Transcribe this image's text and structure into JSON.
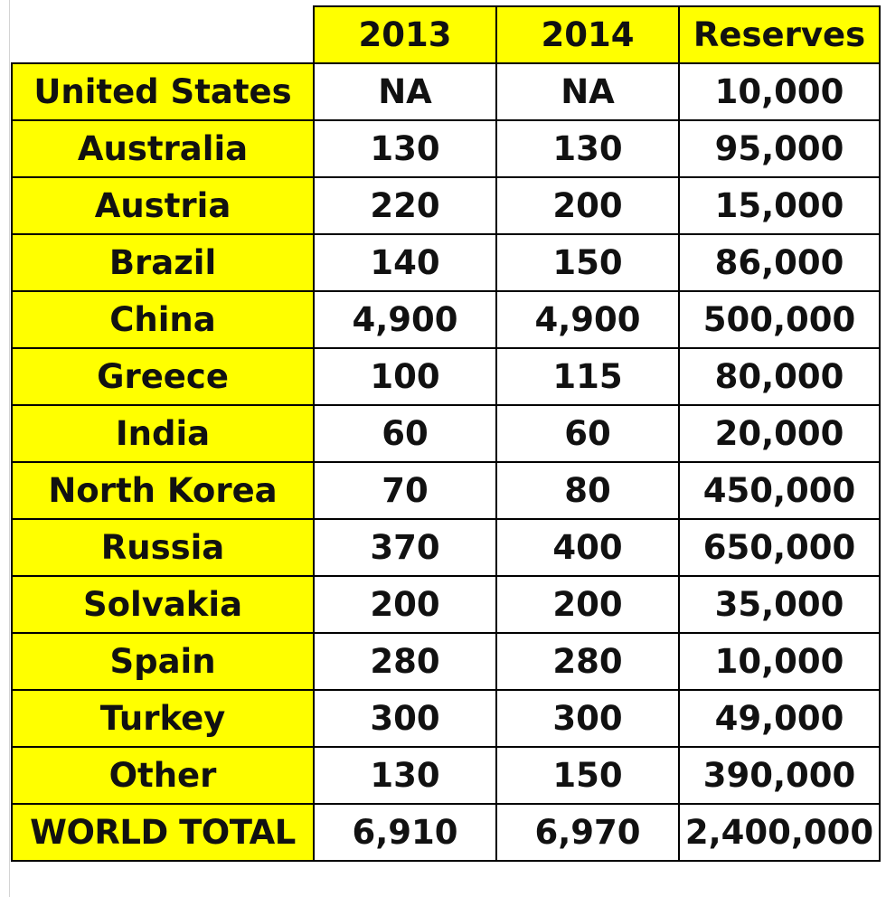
{
  "table": {
    "headers": [
      "2013",
      "2014",
      "Reserves"
    ],
    "rows": [
      {
        "country": "United States",
        "y2013": "NA",
        "y2014": "NA",
        "reserves": "10,000"
      },
      {
        "country": "Australia",
        "y2013": "130",
        "y2014": "130",
        "reserves": "95,000"
      },
      {
        "country": "Austria",
        "y2013": "220",
        "y2014": "200",
        "reserves": "15,000"
      },
      {
        "country": "Brazil",
        "y2013": "140",
        "y2014": "150",
        "reserves": "86,000"
      },
      {
        "country": "China",
        "y2013": "4,900",
        "y2014": "4,900",
        "reserves": "500,000"
      },
      {
        "country": "Greece",
        "y2013": "100",
        "y2014": "115",
        "reserves": "80,000"
      },
      {
        "country": "India",
        "y2013": "60",
        "y2014": "60",
        "reserves": "20,000"
      },
      {
        "country": "North Korea",
        "y2013": "70",
        "y2014": "80",
        "reserves": "450,000"
      },
      {
        "country": "Russia",
        "y2013": "370",
        "y2014": "400",
        "reserves": "650,000"
      },
      {
        "country": "Solvakia",
        "y2013": "200",
        "y2014": "200",
        "reserves": "35,000"
      },
      {
        "country": "Spain",
        "y2013": "280",
        "y2014": "280",
        "reserves": "10,000"
      },
      {
        "country": "Turkey",
        "y2013": "300",
        "y2014": "300",
        "reserves": "49,000"
      },
      {
        "country": "Other",
        "y2013": "130",
        "y2014": "150",
        "reserves": "390,000"
      }
    ],
    "total": {
      "label": "WORLD TOTAL",
      "y2013": "6,910",
      "y2014": "6,970",
      "reserves": "2,400,000"
    }
  },
  "colors": {
    "highlight": "#ffff00",
    "border": "#000000",
    "cell_background": "#ffffff"
  }
}
